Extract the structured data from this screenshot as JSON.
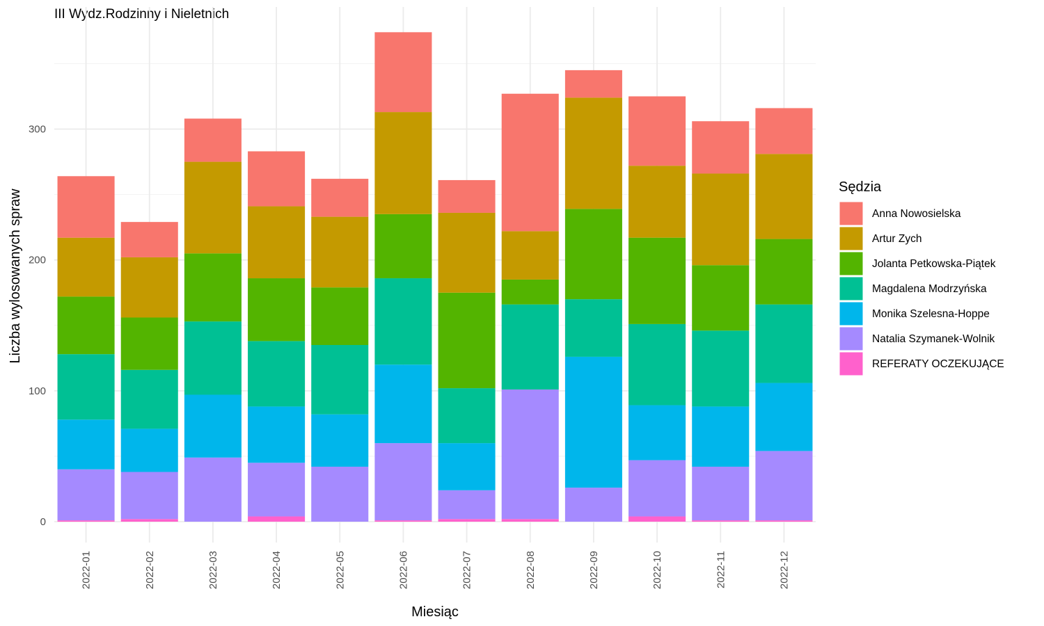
{
  "chart_data": {
    "type": "bar",
    "stacked": true,
    "title": "III Wydz.Rodzinny i Nieletnich",
    "xlabel": "Miesiąc",
    "ylabel": "Liczba wylosowanych spraw",
    "ylim": [
      0,
      376
    ],
    "yticks": [
      0,
      100,
      200,
      300
    ],
    "grid": true,
    "legend_title": "Sędzia",
    "legend_position": "right",
    "categories": [
      "2022-01",
      "2022-02",
      "2022-03",
      "2022-04",
      "2022-05",
      "2022-06",
      "2022-07",
      "2022-08",
      "2022-09",
      "2022-10",
      "2022-11",
      "2022-12"
    ],
    "series": [
      {
        "name": "REFERATY OCZEKUJĄCE",
        "color": "#FF61CC",
        "values": [
          1,
          2,
          0,
          4,
          0,
          1,
          2,
          2,
          0,
          4,
          1,
          1
        ]
      },
      {
        "name": "Natalia Szymanek-Wolnik",
        "color": "#A58AFF",
        "values": [
          39,
          36,
          49,
          41,
          42,
          59,
          22,
          99,
          26,
          43,
          41,
          53
        ]
      },
      {
        "name": "Monika Szelesna-Hoppe",
        "color": "#00B6EB",
        "values": [
          38,
          33,
          48,
          43,
          40,
          60,
          36,
          0,
          100,
          42,
          46,
          52
        ]
      },
      {
        "name": "Magdalena Modrzyńska",
        "color": "#00C094",
        "values": [
          50,
          45,
          56,
          50,
          53,
          66,
          42,
          65,
          44,
          62,
          58,
          60
        ]
      },
      {
        "name": "Jolanta Petkowska-Piątek",
        "color": "#53B400",
        "values": [
          44,
          40,
          52,
          48,
          44,
          49,
          73,
          19,
          69,
          66,
          50,
          50
        ]
      },
      {
        "name": "Artur Zych",
        "color": "#C49A00",
        "values": [
          45,
          46,
          70,
          55,
          54,
          78,
          61,
          37,
          85,
          55,
          70,
          65
        ]
      },
      {
        "name": "Anna Nowosielska",
        "color": "#F8766D",
        "values": [
          47,
          27,
          33,
          42,
          29,
          61,
          25,
          105,
          21,
          53,
          40,
          35
        ]
      }
    ],
    "legend_order": [
      "Anna Nowosielska",
      "Artur Zych",
      "Jolanta Petkowska-Piątek",
      "Magdalena Modrzyńska",
      "Monika Szelesna-Hoppe",
      "Natalia Szymanek-Wolnik",
      "REFERATY OCZEKUJĄCE"
    ]
  }
}
